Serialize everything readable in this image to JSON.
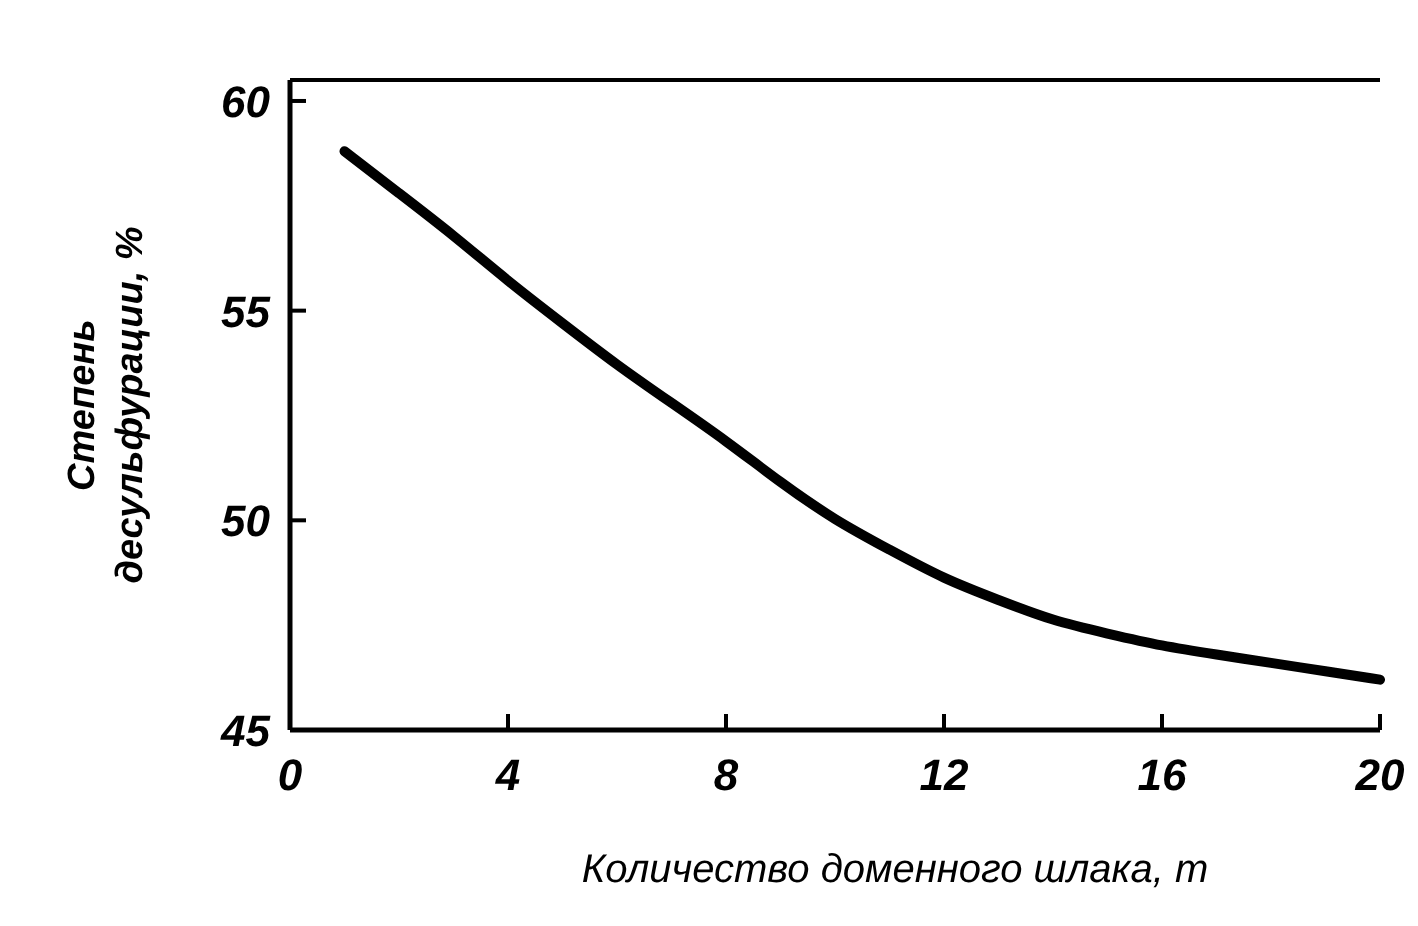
{
  "chart_data": {
    "type": "line",
    "xlabel": "Количество доменного шлака, т",
    "ylabel": "Степень\nдесульфурации, %",
    "x": [
      1,
      2,
      3,
      4,
      5,
      6,
      7,
      8,
      9,
      10,
      11,
      12,
      13,
      14,
      15,
      16,
      17,
      18,
      19,
      20
    ],
    "series": [
      {
        "color": "#000000",
        "values": [
          58.8,
          57.8,
          56.8,
          55.7,
          54.7,
          53.7,
          52.8,
          51.9,
          50.9,
          50.0,
          49.3,
          48.6,
          48.1,
          47.6,
          47.3,
          47.0,
          46.8,
          46.6,
          46.4,
          46.2
        ]
      }
    ],
    "xlim": [
      0,
      20
    ],
    "ylim": [
      45,
      60.5
    ],
    "xticks": [
      0,
      4,
      8,
      12,
      16,
      20
    ],
    "yticks": [
      45,
      50,
      55,
      60
    ],
    "grid": false,
    "marker": "none",
    "line_style": "solid"
  }
}
